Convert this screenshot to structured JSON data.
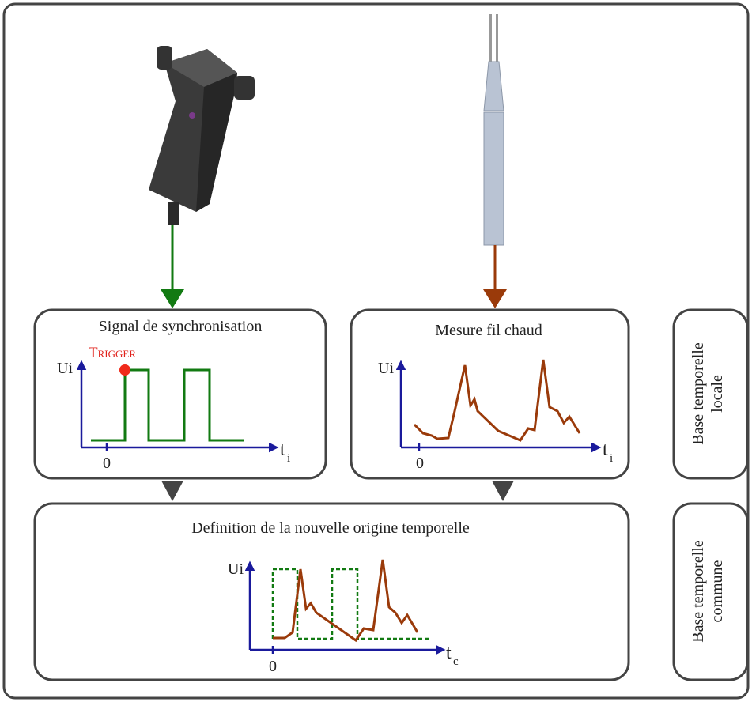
{
  "sync": {
    "title": "Signal de synchronisation",
    "trigger": "Trigger",
    "y_label": "Ui",
    "x_label": "t",
    "x_sub": "i",
    "origin": "0"
  },
  "hotwire": {
    "title": "Mesure fil chaud",
    "y_label": "Ui",
    "x_label": "t",
    "x_sub": "i",
    "origin": "0"
  },
  "common": {
    "title": "Definition de la nouvelle origine temporelle",
    "y_label": "Ui",
    "x_label": "t",
    "x_sub": "c",
    "origin": "0"
  },
  "side_labels": [
    [
      "Base temporelle",
      "locale"
    ],
    [
      "Base temporelle",
      "commune"
    ]
  ]
}
